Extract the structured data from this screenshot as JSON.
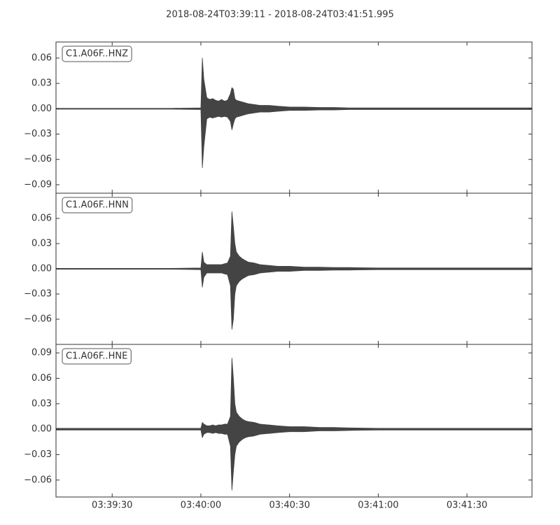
{
  "chart_data": [
    {
      "type": "area",
      "title": "2018-08-24T03:39:11  -  2018-08-24T03:41:51.995",
      "label": "C1.A06F..HNZ",
      "color": "#444444",
      "x": [
        11,
        20,
        30,
        40,
        50,
        60,
        60.5,
        61,
        62,
        63,
        64,
        65,
        66,
        67,
        68,
        69,
        70,
        70.5,
        71,
        71.5,
        72,
        73,
        74,
        75,
        76,
        78,
        80,
        83,
        86,
        90,
        95,
        100,
        105,
        110,
        120,
        130,
        140,
        150,
        160,
        171.995
      ],
      "series": [
        {
          "values": [
            0.0005,
            0.0005,
            0.0005,
            0.0005,
            0.0005,
            0.001,
            0.06,
            0.035,
            0.013,
            0.011,
            0.012,
            0.01,
            0.009,
            0.011,
            0.009,
            0.01,
            0.018,
            0.025,
            0.023,
            0.012,
            0.01,
            0.009,
            0.008,
            0.007,
            0.006,
            0.005,
            0.004,
            0.004,
            0.003,
            0.002,
            0.002,
            0.0015,
            0.0015,
            0.001,
            0.001,
            0.001,
            0.001,
            0.001,
            0.001,
            0.001
          ]
        },
        {
          "values": [
            -0.0005,
            -0.0005,
            -0.0005,
            -0.0005,
            -0.0005,
            -0.001,
            -0.07,
            -0.045,
            -0.012,
            -0.01,
            -0.011,
            -0.01,
            -0.009,
            -0.01,
            -0.009,
            -0.01,
            -0.015,
            -0.025,
            -0.018,
            -0.012,
            -0.01,
            -0.009,
            -0.008,
            -0.007,
            -0.006,
            -0.005,
            -0.004,
            -0.004,
            -0.003,
            -0.002,
            -0.002,
            -0.0015,
            -0.0015,
            -0.001,
            -0.001,
            -0.001,
            -0.001,
            -0.001,
            -0.001,
            -0.001
          ]
        }
      ],
      "xlim": [
        11,
        171.995
      ],
      "ylim": [
        -0.1,
        0.079
      ],
      "yticks": [
        0.06,
        0.03,
        {
          "value": 0,
          "label": "0.00"
        },
        {
          "value": -0.03,
          "label": "−0.03"
        },
        {
          "value": -0.06,
          "label": "−0.06"
        },
        {
          "value": -0.09,
          "label": "−0.09"
        }
      ]
    },
    {
      "type": "area",
      "label": "C1.A06F..HNN",
      "color": "#444444",
      "x": [
        11,
        20,
        30,
        40,
        50,
        60,
        60.5,
        61,
        62,
        63,
        64,
        65,
        66,
        67,
        68,
        69,
        70,
        70.5,
        71,
        71.5,
        72,
        73,
        74,
        75,
        76,
        78,
        80,
        83,
        86,
        90,
        95,
        100,
        105,
        110,
        120,
        130,
        140,
        150,
        160,
        171.995
      ],
      "series": [
        {
          "values": [
            0.0005,
            0.0005,
            0.0005,
            0.0005,
            0.0005,
            0.001,
            0.02,
            0.008,
            0.005,
            0.005,
            0.005,
            0.005,
            0.005,
            0.005,
            0.006,
            0.007,
            0.015,
            0.068,
            0.05,
            0.03,
            0.02,
            0.015,
            0.012,
            0.01,
            0.008,
            0.007,
            0.005,
            0.004,
            0.003,
            0.003,
            0.002,
            0.002,
            0.0015,
            0.0015,
            0.001,
            0.001,
            0.001,
            0.001,
            0.001,
            0.001
          ]
        },
        {
          "values": [
            -0.0005,
            -0.0005,
            -0.0005,
            -0.0005,
            -0.0005,
            -0.001,
            -0.022,
            -0.01,
            -0.005,
            -0.005,
            -0.005,
            -0.005,
            -0.005,
            -0.005,
            -0.006,
            -0.007,
            -0.02,
            -0.072,
            -0.06,
            -0.03,
            -0.02,
            -0.015,
            -0.012,
            -0.01,
            -0.008,
            -0.007,
            -0.005,
            -0.004,
            -0.003,
            -0.003,
            -0.002,
            -0.002,
            -0.0015,
            -0.0015,
            -0.001,
            -0.001,
            -0.001,
            -0.001,
            -0.001,
            -0.001
          ]
        }
      ],
      "xlim": [
        11,
        171.995
      ],
      "ylim": [
        -0.09,
        0.09
      ],
      "yticks": [
        0.06,
        0.03,
        {
          "value": 0,
          "label": "0.00"
        },
        {
          "value": -0.03,
          "label": "−0.03"
        },
        {
          "value": -0.06,
          "label": "−0.06"
        }
      ]
    },
    {
      "type": "area",
      "label": "C1.A06F..HNE",
      "color": "#444444",
      "x": [
        11,
        20,
        30,
        40,
        50,
        60,
        60.5,
        61,
        62,
        63,
        64,
        65,
        66,
        67,
        68,
        69,
        70,
        70.5,
        71,
        71.5,
        72,
        73,
        74,
        75,
        76,
        78,
        80,
        83,
        86,
        90,
        95,
        100,
        105,
        110,
        120,
        130,
        140,
        150,
        160,
        171.995
      ],
      "series": [
        {
          "values": [
            0.001,
            0.001,
            0.001,
            0.001,
            0.001,
            0.001,
            0.008,
            0.006,
            0.004,
            0.004,
            0.005,
            0.004,
            0.005,
            0.005,
            0.006,
            0.006,
            0.015,
            0.084,
            0.06,
            0.03,
            0.02,
            0.015,
            0.012,
            0.01,
            0.009,
            0.008,
            0.006,
            0.005,
            0.004,
            0.003,
            0.003,
            0.002,
            0.002,
            0.0015,
            0.001,
            0.001,
            0.001,
            0.001,
            0.001,
            0.001
          ]
        },
        {
          "values": [
            -0.001,
            -0.001,
            -0.001,
            -0.001,
            -0.001,
            -0.001,
            -0.01,
            -0.006,
            -0.004,
            -0.004,
            -0.005,
            -0.004,
            -0.005,
            -0.005,
            -0.006,
            -0.006,
            -0.02,
            -0.072,
            -0.05,
            -0.03,
            -0.02,
            -0.015,
            -0.012,
            -0.01,
            -0.009,
            -0.008,
            -0.006,
            -0.005,
            -0.004,
            -0.003,
            -0.003,
            -0.002,
            -0.002,
            -0.0015,
            -0.001,
            -0.001,
            -0.001,
            -0.001,
            -0.001,
            -0.001
          ]
        }
      ],
      "xlim": [
        11,
        171.995
      ],
      "ylim": [
        -0.08,
        0.1
      ],
      "yticks": [
        0.09,
        0.06,
        0.03,
        {
          "value": 0,
          "label": "0.00"
        },
        {
          "value": -0.03,
          "label": "−0.03"
        },
        {
          "value": -0.06,
          "label": "−0.06"
        }
      ],
      "xticks": [
        {
          "value": 30,
          "label": "03:39:30"
        },
        {
          "value": 60,
          "label": "03:40:00"
        },
        {
          "value": 90,
          "label": "03:40:30"
        },
        {
          "value": 120,
          "label": "03:41:00"
        },
        {
          "value": 150,
          "label": "03:41:30"
        }
      ]
    }
  ]
}
